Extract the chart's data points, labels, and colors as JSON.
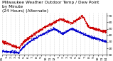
{
  "title": "Milwaukee Weather Outdoor Temp / Dew Point\nby Minute\n(24 Hours) (Alternate)",
  "bg_color": "#ffffff",
  "grid_color": "#aaaaaa",
  "red_color": "#cc0000",
  "blue_color": "#0000cc",
  "y_min": 10,
  "y_max": 75,
  "y_ticks": [
    10,
    20,
    30,
    40,
    50,
    60,
    70
  ],
  "title_fontsize": 4.2,
  "tick_fontsize": 3.2,
  "n_points": 1440
}
